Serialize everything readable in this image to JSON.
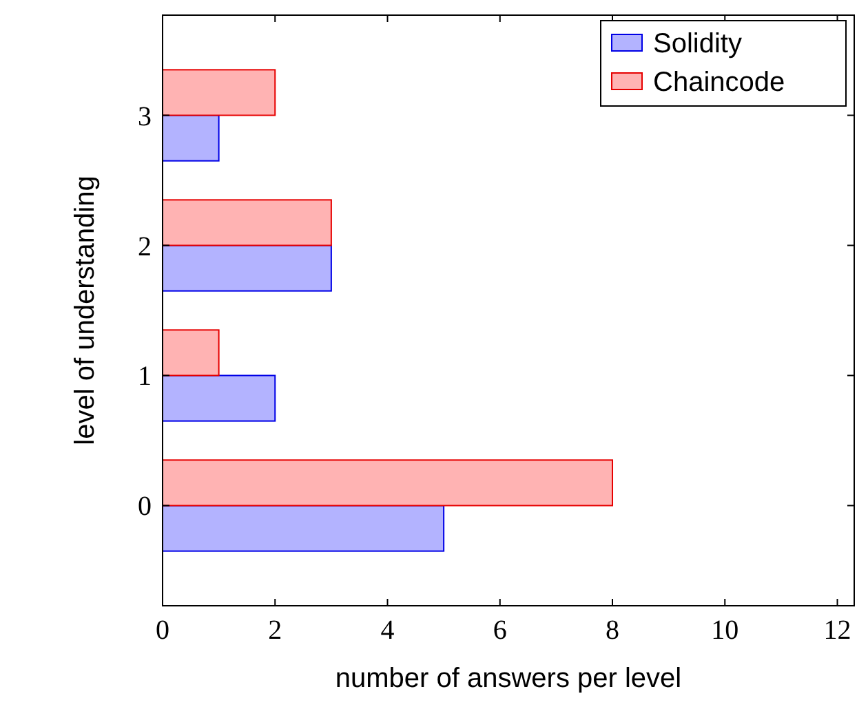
{
  "chart_data": {
    "type": "bar",
    "orientation": "horizontal",
    "xlabel": "number of answers per level",
    "ylabel": "level of understanding",
    "categories": [
      "3",
      "2",
      "1",
      "0"
    ],
    "series": [
      {
        "name": "Solidity",
        "color": "#b3b3ff",
        "values": [
          1,
          3,
          2,
          5
        ]
      },
      {
        "name": "Chaincode",
        "color": "#ffb3b3",
        "values": [
          2,
          3,
          1,
          8
        ]
      }
    ],
    "xlim": [
      0,
      12.3
    ],
    "xticks": [
      0,
      2,
      4,
      6,
      8,
      10,
      12
    ],
    "grid": false,
    "legend": "top right"
  }
}
